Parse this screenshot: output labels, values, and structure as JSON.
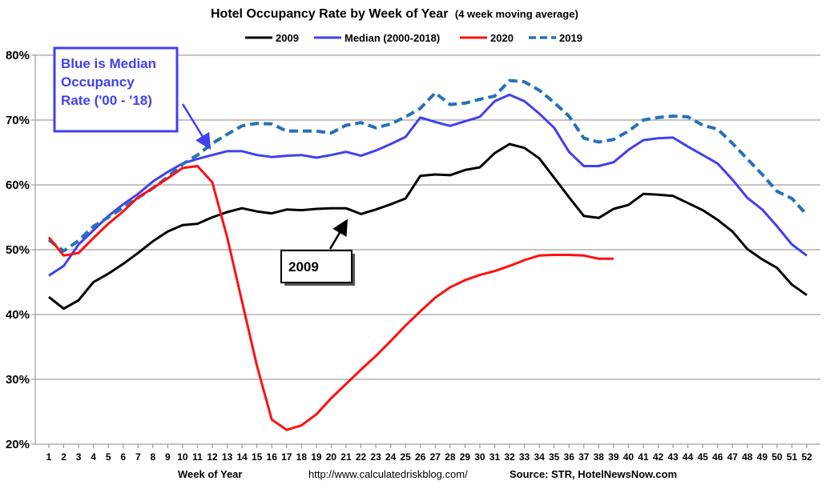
{
  "chart_data": {
    "type": "line",
    "title": "Hotel Occupancy Rate by  Week of Year",
    "subtitle": "(4 week moving average)",
    "xlabel": "Week of Year",
    "ylabel": "",
    "ylim": [
      20,
      80
    ],
    "yticks": [
      "20%",
      "30%",
      "40%",
      "50%",
      "60%",
      "70%",
      "80%"
    ],
    "grid": true,
    "legend_position": "top",
    "x": [
      1,
      2,
      3,
      4,
      5,
      6,
      7,
      8,
      9,
      10,
      11,
      12,
      13,
      14,
      15,
      16,
      17,
      18,
      19,
      20,
      21,
      22,
      23,
      24,
      25,
      26,
      27,
      28,
      29,
      30,
      31,
      32,
      33,
      34,
      35,
      36,
      37,
      38,
      39,
      40,
      41,
      42,
      43,
      44,
      45,
      46,
      47,
      48,
      49,
      50,
      51,
      52
    ],
    "series": [
      {
        "name": "2009",
        "color": "#000000",
        "style": "solid",
        "values": [
          42.7,
          40.9,
          42.2,
          45.0,
          46.3,
          47.8,
          49.5,
          51.3,
          52.8,
          53.8,
          54.0,
          55.0,
          55.8,
          56.4,
          55.9,
          55.6,
          56.2,
          56.1,
          56.3,
          56.4,
          56.4,
          55.5,
          56.2,
          57.0,
          57.9,
          61.4,
          61.6,
          61.5,
          62.3,
          62.7,
          64.9,
          66.3,
          65.7,
          64.1,
          61.1,
          58.1,
          55.2,
          54.9,
          56.3,
          56.9,
          58.6,
          58.5,
          58.3,
          57.2,
          56.1,
          54.6,
          52.8,
          50.1,
          48.5,
          47.2,
          44.6,
          43.0
        ]
      },
      {
        "name": "Median (2000-2018)",
        "color": "#4040f0",
        "style": "solid",
        "values": [
          46.0,
          47.5,
          50.8,
          53.0,
          55.2,
          57.0,
          58.6,
          60.5,
          62.0,
          63.3,
          64.0,
          64.6,
          65.2,
          65.2,
          64.6,
          64.3,
          64.5,
          64.6,
          64.2,
          64.6,
          65.1,
          64.5,
          65.3,
          66.3,
          67.4,
          70.4,
          69.7,
          69.1,
          69.8,
          70.5,
          72.9,
          73.9,
          72.9,
          71.0,
          68.8,
          65.1,
          62.9,
          62.9,
          63.5,
          65.4,
          66.9,
          67.2,
          67.3,
          65.9,
          64.6,
          63.3,
          60.8,
          58.0,
          56.2,
          53.6,
          50.8,
          49.1
        ]
      },
      {
        "name": "2020",
        "color": "#ff1010",
        "style": "solid",
        "values": [
          51.9,
          49.1,
          49.5,
          51.8,
          54.0,
          55.9,
          58.1,
          59.5,
          61.0,
          62.6,
          62.9,
          60.4,
          51.9,
          42.0,
          32.1,
          23.8,
          22.2,
          22.9,
          24.6,
          27.1,
          29.3,
          31.5,
          33.6,
          35.9,
          38.3,
          40.5,
          42.6,
          44.2,
          45.3,
          46.1,
          46.7,
          47.5,
          48.4,
          49.1,
          49.2,
          49.2,
          49.1,
          48.6,
          48.6,
          null,
          null,
          null,
          null,
          null,
          null,
          null,
          null,
          null,
          null,
          null,
          null,
          null
        ]
      },
      {
        "name": "2019",
        "color": "#2870b8",
        "style": "dashed",
        "values": [
          51.5,
          49.8,
          51.4,
          53.6,
          55.0,
          56.5,
          58.0,
          59.5,
          61.2,
          63.2,
          64.6,
          66.4,
          67.8,
          69.1,
          69.5,
          69.4,
          68.3,
          68.3,
          68.3,
          68.0,
          69.2,
          69.6,
          68.8,
          69.4,
          70.5,
          71.8,
          74.2,
          72.4,
          72.6,
          73.2,
          73.7,
          76.1,
          75.9,
          74.6,
          72.7,
          70.6,
          67.2,
          66.6,
          67.0,
          68.3,
          70.0,
          70.4,
          70.6,
          70.5,
          69.2,
          68.6,
          66.4,
          64.0,
          61.6,
          59.0,
          57.9,
          55.4
        ]
      }
    ],
    "annotations": [
      {
        "text_lines": [
          "Blue is Median",
          "Occupancy",
          "Rate ('00 - '18)"
        ],
        "color": "#4040f0",
        "target": {
          "x": 12,
          "y": 66
        }
      },
      {
        "text_lines": [
          "2009"
        ],
        "color": "#000000",
        "target": {
          "x": 21,
          "y": 55.5
        }
      }
    ],
    "url_text": "http://www.calculatedriskblog.com/",
    "source_text": "Source: STR, HotelNewsNow.com"
  }
}
